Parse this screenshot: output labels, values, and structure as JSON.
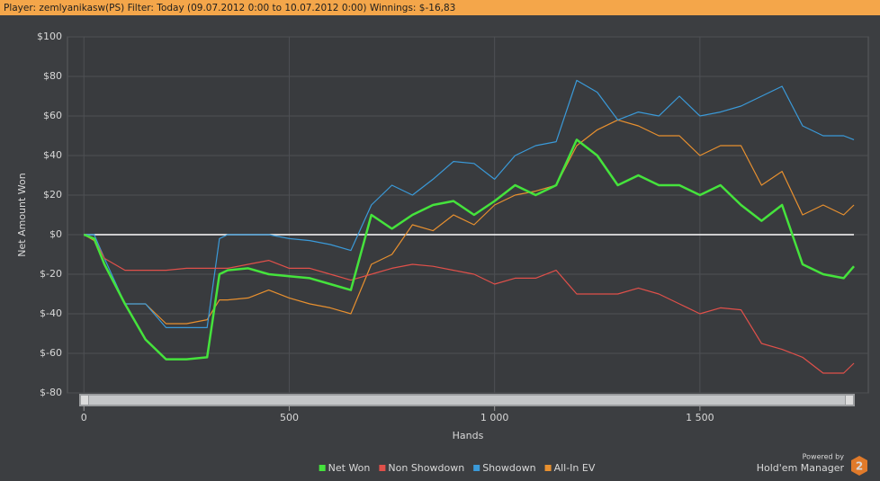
{
  "header": {
    "text": "Player: zemlyanikasw(PS) Filter: Today (09.07.2012 0:00 to 10.07.2012 0:00) Winnings: $-16,83"
  },
  "branding": {
    "powered_by": "Powered by",
    "product": "Hold'em Manager",
    "version": "2"
  },
  "chart_data": {
    "type": "line",
    "y_label": "Net Amount Won",
    "x_label": "Hands",
    "x": [
      0,
      25,
      50,
      100,
      150,
      200,
      250,
      300,
      330,
      350,
      400,
      450,
      500,
      550,
      600,
      650,
      700,
      750,
      800,
      850,
      900,
      950,
      1000,
      1050,
      1100,
      1150,
      1200,
      1250,
      1300,
      1350,
      1400,
      1450,
      1500,
      1550,
      1600,
      1650,
      1700,
      1750,
      1800,
      1850,
      1875
    ],
    "series": [
      {
        "name": "Net Won",
        "color": "#45e33c",
        "values": [
          0,
          -2,
          -15,
          -35,
          -53,
          -63,
          -63,
          -62,
          -20,
          -18,
          -17,
          -20,
          -21,
          -22,
          -25,
          -28,
          10,
          3,
          10,
          15,
          17,
          10,
          17,
          25,
          20,
          25,
          48,
          40,
          25,
          30,
          25,
          25,
          20,
          25,
          15,
          7,
          15,
          -15,
          -20,
          -22,
          -16
        ]
      },
      {
        "name": "Non Showdown",
        "color": "#e0504a",
        "values": [
          0,
          -2,
          -12,
          -18,
          -18,
          -18,
          -17,
          -17,
          -17,
          -17,
          -15,
          -13,
          -17,
          -17,
          -20,
          -23,
          -20,
          -17,
          -15,
          -16,
          -18,
          -20,
          -25,
          -22,
          -22,
          -18,
          -30,
          -30,
          -30,
          -27,
          -30,
          -35,
          -40,
          -37,
          -38,
          -55,
          -58,
          -62,
          -70,
          -70,
          -65
        ]
      },
      {
        "name": "Showdown",
        "color": "#3a9ad9",
        "values": [
          0,
          0,
          -12,
          -35,
          -35,
          -47,
          -47,
          -47,
          -2,
          0,
          0,
          0,
          -2,
          -3,
          -5,
          -8,
          15,
          25,
          20,
          28,
          37,
          36,
          28,
          40,
          45,
          47,
          78,
          72,
          58,
          62,
          60,
          70,
          60,
          62,
          65,
          70,
          75,
          55,
          50,
          50,
          48
        ]
      },
      {
        "name": "All-In EV",
        "color": "#e8902f",
        "values": [
          0,
          -3,
          -15,
          -35,
          -35,
          -45,
          -45,
          -43,
          -33,
          -33,
          -32,
          -28,
          -32,
          -35,
          -37,
          -40,
          -15,
          -10,
          5,
          2,
          10,
          5,
          15,
          20,
          22,
          25,
          45,
          53,
          58,
          55,
          50,
          50,
          40,
          45,
          45,
          25,
          32,
          10,
          15,
          10,
          15
        ]
      }
    ],
    "xlim": [
      -40,
      1910
    ],
    "ylim": [
      -80,
      100
    ],
    "xticks": [
      0,
      500,
      {
        "value": 1000,
        "label": "1 000"
      },
      {
        "value": 1500,
        "label": "1 500"
      }
    ],
    "yticks": [
      {
        "value": 100,
        "label": "$100"
      },
      {
        "value": 80,
        "label": "$80"
      },
      {
        "value": 60,
        "label": "$60"
      },
      {
        "value": 40,
        "label": "$40"
      },
      {
        "value": 20,
        "label": "$20"
      },
      {
        "value": 0,
        "label": "$0"
      },
      {
        "value": -20,
        "label": "$-20"
      },
      {
        "value": -40,
        "label": "$-40"
      },
      {
        "value": -60,
        "label": "$-60"
      },
      {
        "value": -80,
        "label": "$-80"
      }
    ],
    "grid": true,
    "zero_line": true,
    "legend": "bottom"
  }
}
